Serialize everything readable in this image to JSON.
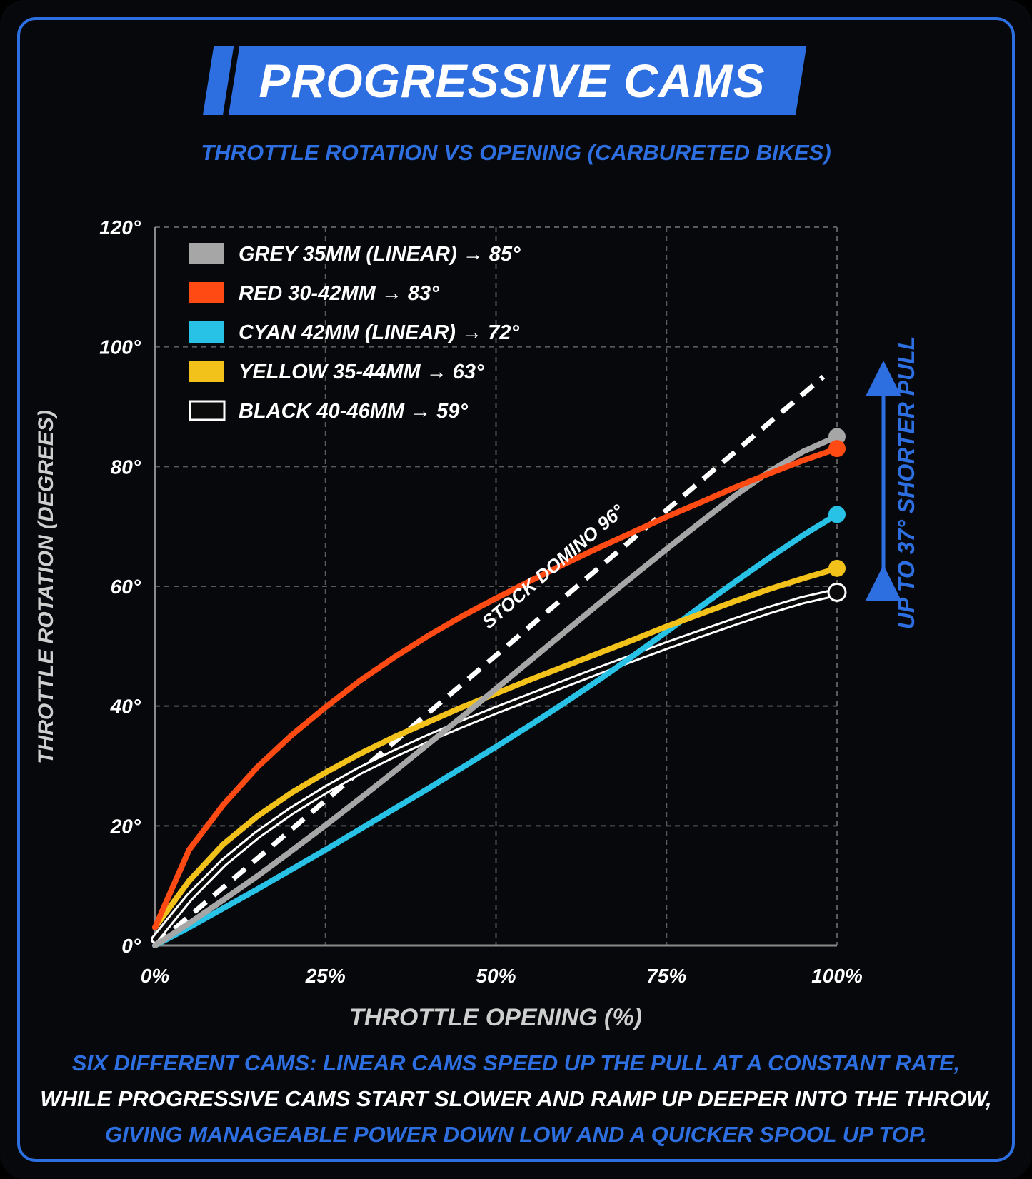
{
  "title": "PROGRESSIVE CAMS",
  "subtitle": "THROTTLE ROTATION VS OPENING (CARBURETED BIKES)",
  "annotation_arrow": "UP TO 37° SHORTER PULL",
  "footer": {
    "line1": "SIX DIFFERENT CAMS: LINEAR CAMS SPEED UP THE PULL AT A CONSTANT RATE,",
    "line2": "WHILE PROGRESSIVE CAMS START SLOWER AND RAMP UP DEEPER INTO THE THROW,",
    "line3": "GIVING MANAGEABLE POWER DOWN LOW AND A QUICKER SPOOL UP TOP."
  },
  "colors": {
    "accent": "#2d6fe0",
    "background": "#07080b",
    "grey": "#a6a6a6",
    "red": "#ff4a14",
    "cyan": "#27c2e6",
    "yellow": "#f2c21a",
    "black": "#0b0b0b",
    "stock": "#ffffff"
  },
  "chart_data": {
    "type": "line",
    "xlabel": "THROTTLE OPENING (%)",
    "ylabel": "THROTTLE ROTATION (DEGREES)",
    "xlim": [
      0,
      100
    ],
    "ylim": [
      0,
      120
    ],
    "x_ticks": [
      "0%",
      "25%",
      "50%",
      "75%",
      "100%"
    ],
    "x_tick_values": [
      0,
      25,
      50,
      75,
      100
    ],
    "y_ticks": [
      "0°",
      "20°",
      "40°",
      "60°",
      "80°",
      "100°",
      "120°"
    ],
    "y_tick_values": [
      0,
      20,
      40,
      60,
      80,
      100,
      120
    ],
    "grid": true,
    "legend_position": "top-left",
    "x": [
      0,
      5,
      10,
      15,
      20,
      25,
      30,
      35,
      40,
      45,
      50,
      55,
      60,
      65,
      70,
      75,
      80,
      85,
      90,
      95,
      100
    ],
    "series": [
      {
        "key": "grey",
        "name": "GREY 35MM (LINEAR) → 85°",
        "end_value": 85,
        "values": [
          0,
          3.7,
          7.6,
          11.6,
          15.8,
          20.1,
          24.5,
          29.0,
          33.6,
          38.2,
          42.9,
          47.6,
          52.3,
          57.0,
          61.6,
          66.2,
          70.7,
          75.1,
          79.1,
          82.5,
          85
        ]
      },
      {
        "key": "red",
        "name": "RED 30-42MM → 83°",
        "end_value": 83,
        "values": [
          3,
          16,
          23.5,
          29.8,
          35.1,
          39.8,
          44.2,
          48.1,
          51.7,
          55.0,
          58.0,
          60.9,
          63.7,
          66.4,
          69.0,
          71.6,
          74.0,
          76.5,
          78.8,
          81.0,
          83
        ]
      },
      {
        "key": "cyan",
        "name": "CYAN 42MM (LINEAR) → 72°",
        "end_value": 72,
        "values": [
          0,
          3.0,
          6.2,
          9.4,
          12.7,
          16.0,
          19.4,
          22.8,
          26.2,
          29.7,
          33.2,
          36.8,
          40.5,
          44.3,
          48.3,
          52.4,
          56.6,
          60.7,
          64.7,
          68.5,
          72
        ]
      },
      {
        "key": "yellow",
        "name": "YELLOW 35-44MM → 63°",
        "end_value": 63,
        "values": [
          3,
          10.8,
          16.9,
          21.6,
          25.5,
          28.9,
          32.0,
          34.8,
          37.3,
          39.8,
          42.1,
          44.4,
          46.6,
          48.8,
          51.0,
          53.3,
          55.4,
          57.5,
          59.5,
          61.3,
          63
        ]
      },
      {
        "key": "black",
        "name": "BLACK 40-46MM → 59°",
        "end_value": 59,
        "values": [
          1,
          8.0,
          13.8,
          18.5,
          22.5,
          26.0,
          29.2,
          32.0,
          34.6,
          37.0,
          39.3,
          41.5,
          43.7,
          45.9,
          48.0,
          50.1,
          52.1,
          54.1,
          56.0,
          57.7,
          59
        ]
      }
    ],
    "reference_line": {
      "name": "STOCK DOMINO 96°",
      "x": [
        0,
        98
      ],
      "values": [
        0,
        95
      ]
    }
  }
}
